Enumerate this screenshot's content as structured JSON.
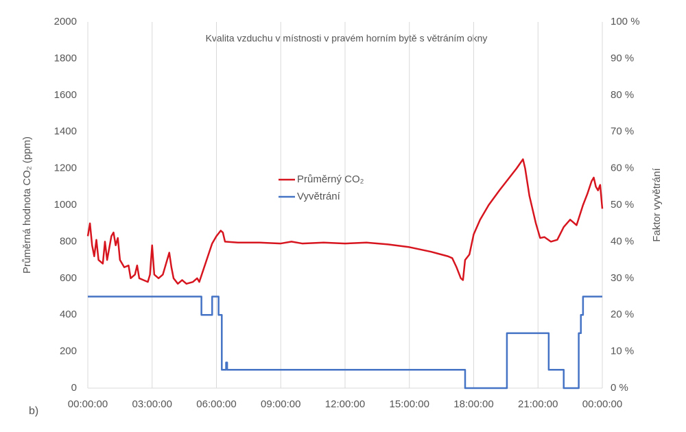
{
  "chart_data": {
    "type": "line",
    "title": "Kvalita vzduchu v místnosti v pravém horním bytě s větráním okny",
    "ylabel": "Průměrná hodnota CO₂ (ppm)",
    "y2label": "Faktor vyvětrání",
    "annotation": "b)",
    "xlim": [
      0,
      24
    ],
    "xticks": [
      {
        "value": 0,
        "label": "00:00:00"
      },
      {
        "value": 3,
        "label": "03:00:00"
      },
      {
        "value": 6,
        "label": "06:00:00"
      },
      {
        "value": 9,
        "label": "09:00:00"
      },
      {
        "value": 12,
        "label": "12:00:00"
      },
      {
        "value": 15,
        "label": "15:00:00"
      },
      {
        "value": 18,
        "label": "18:00:00"
      },
      {
        "value": 21,
        "label": "21:00:00"
      },
      {
        "value": 24,
        "label": "00:00:00"
      }
    ],
    "ylim": [
      0,
      2000
    ],
    "yticks": [
      0,
      200,
      400,
      600,
      800,
      1000,
      1200,
      1400,
      1600,
      1800,
      2000
    ],
    "y2lim": [
      0,
      100
    ],
    "y2ticks": [
      {
        "value": 0,
        "label": "0 %"
      },
      {
        "value": 10,
        "label": "10 %"
      },
      {
        "value": 20,
        "label": "20 %"
      },
      {
        "value": 30,
        "label": "30 %"
      },
      {
        "value": 40,
        "label": "40 %"
      },
      {
        "value": 50,
        "label": "50 %"
      },
      {
        "value": 60,
        "label": "60 %"
      },
      {
        "value": 70,
        "label": "70 %"
      },
      {
        "value": 80,
        "label": "80 %"
      },
      {
        "value": 90,
        "label": "90 %"
      },
      {
        "value": 100,
        "label": "100 %"
      }
    ],
    "xgrid": true,
    "legend": "center",
    "series": [
      {
        "name": "Průměrný CO₂",
        "color": "#d7151f",
        "axis": "y",
        "x": [
          0,
          0.1,
          0.2,
          0.3,
          0.4,
          0.5,
          0.7,
          0.8,
          0.9,
          1.1,
          1.2,
          1.3,
          1.4,
          1.5,
          1.7,
          1.9,
          2.0,
          2.2,
          2.3,
          2.4,
          2.6,
          2.8,
          2.9,
          3.0,
          3.1,
          3.3,
          3.5,
          3.7,
          3.8,
          3.9,
          4.0,
          4.2,
          4.4,
          4.6,
          4.9,
          5.1,
          5.2,
          5.4,
          5.6,
          5.8,
          6.0,
          6.2,
          6.3,
          6.4,
          7,
          8,
          9,
          9.5,
          10,
          11,
          12,
          13,
          14,
          15,
          16,
          16.8,
          17.0,
          17.2,
          17.4,
          17.5,
          17.6,
          17.8,
          18.0,
          18.3,
          18.7,
          19.2,
          19.6,
          20.0,
          20.3,
          20.4,
          20.6,
          20.9,
          21.1,
          21.3,
          21.6,
          21.9,
          22.2,
          22.5,
          22.8,
          23.1,
          23.3,
          23.5,
          23.6,
          23.7,
          23.8,
          23.9,
          24
        ],
        "values": [
          830,
          900,
          780,
          720,
          810,
          700,
          680,
          800,
          700,
          830,
          850,
          780,
          820,
          700,
          660,
          670,
          600,
          620,
          670,
          600,
          590,
          580,
          620,
          780,
          620,
          600,
          620,
          700,
          740,
          660,
          600,
          570,
          590,
          570,
          580,
          600,
          580,
          650,
          720,
          790,
          830,
          860,
          850,
          800,
          795,
          795,
          790,
          800,
          790,
          795,
          790,
          795,
          785,
          770,
          745,
          720,
          710,
          660,
          600,
          590,
          700,
          730,
          840,
          920,
          1000,
          1080,
          1140,
          1200,
          1250,
          1200,
          1050,
          900,
          820,
          825,
          800,
          810,
          880,
          920,
          890,
          1000,
          1060,
          1130,
          1150,
          1100,
          1080,
          1110,
          980
        ]
      },
      {
        "name": "Vyvětrání",
        "color": "#4472c4",
        "axis": "y2",
        "x": [
          0,
          5.3,
          5.3,
          5.8,
          5.8,
          6.1,
          6.1,
          6.25,
          6.25,
          6.45,
          6.45,
          6.5,
          6.5,
          17.6,
          17.6,
          19.55,
          19.55,
          21.5,
          21.5,
          22.2,
          22.2,
          22.9,
          22.9,
          23.0,
          23.0,
          23.1,
          23.1,
          24
        ],
        "values": [
          25,
          25,
          20,
          20,
          25,
          25,
          20,
          20,
          5,
          5,
          7,
          7,
          5,
          5,
          0,
          0,
          15,
          15,
          5,
          5,
          0,
          0,
          15,
          15,
          20,
          20,
          25,
          25
        ]
      }
    ]
  }
}
